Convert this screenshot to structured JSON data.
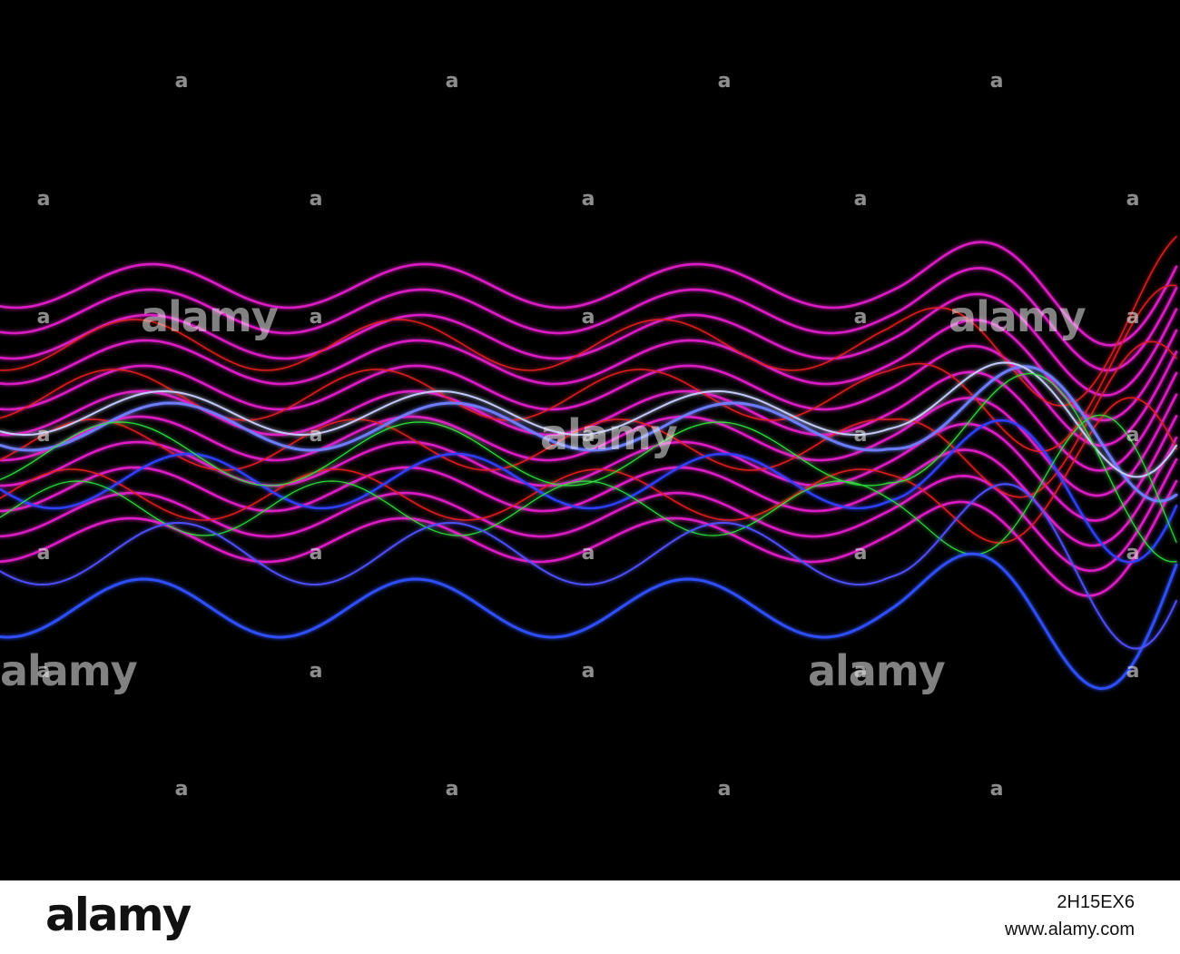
{
  "watermark": "alamy",
  "watermark_icon": "a",
  "footer": {
    "logo": "alamy",
    "image_id": "2H15EX6",
    "url": "www.alamy.com"
  }
}
